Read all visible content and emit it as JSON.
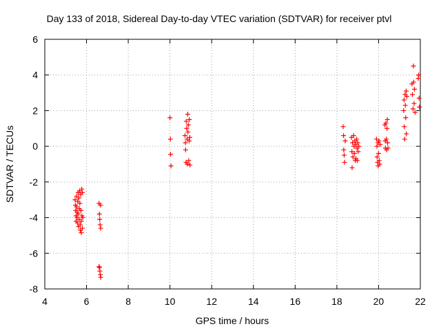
{
  "chart_data": {
    "type": "scatter",
    "title": "Day 133 of 2018, Sidereal Day-to-day VTEC variation (SDTVAR) for receiver ptvl",
    "xlabel": "GPS time / hours",
    "ylabel": "SDTVAR / TECUs",
    "xlim": [
      4,
      22
    ],
    "ylim": [
      -8,
      6
    ],
    "xticks": [
      4,
      6,
      8,
      10,
      12,
      14,
      16,
      18,
      20,
      22
    ],
    "yticks": [
      -8,
      -6,
      -4,
      -2,
      0,
      2,
      4,
      6
    ],
    "grid": true,
    "marker": "+",
    "color": "#ff0000",
    "series": [
      {
        "name": "SDTVAR",
        "points": [
          [
            5.45,
            -3.0
          ],
          [
            5.47,
            -3.3
          ],
          [
            5.48,
            -3.6
          ],
          [
            5.5,
            -3.9
          ],
          [
            5.5,
            -4.2
          ],
          [
            5.52,
            -2.8
          ],
          [
            5.53,
            -3.4
          ],
          [
            5.55,
            -3.7
          ],
          [
            5.55,
            -4.0
          ],
          [
            5.57,
            -4.3
          ],
          [
            5.58,
            -3.1
          ],
          [
            5.6,
            -2.6
          ],
          [
            5.6,
            -3.8
          ],
          [
            5.62,
            -4.5
          ],
          [
            5.63,
            -2.9
          ],
          [
            5.65,
            -3.5
          ],
          [
            5.65,
            -4.1
          ],
          [
            5.67,
            -2.5
          ],
          [
            5.68,
            -3.2
          ],
          [
            5.7,
            -4.4
          ],
          [
            5.7,
            -4.7
          ],
          [
            5.72,
            -2.7
          ],
          [
            5.73,
            -3.6
          ],
          [
            5.75,
            -4.2
          ],
          [
            5.75,
            -4.85
          ],
          [
            5.77,
            -2.4
          ],
          [
            5.78,
            -3.9
          ],
          [
            5.8,
            -4.6
          ],
          [
            5.8,
            -2.6
          ],
          [
            5.82,
            -4.0
          ],
          [
            6.6,
            -3.2
          ],
          [
            6.62,
            -3.8
          ],
          [
            6.63,
            -4.1
          ],
          [
            6.65,
            -4.4
          ],
          [
            6.67,
            -3.3
          ],
          [
            6.68,
            -4.6
          ],
          [
            6.62,
            -6.8
          ],
          [
            6.64,
            -7.0
          ],
          [
            6.66,
            -7.2
          ],
          [
            6.68,
            -7.35
          ],
          [
            6.6,
            -6.75
          ],
          [
            10.0,
            1.6
          ],
          [
            10.02,
            0.4
          ],
          [
            10.03,
            -0.45
          ],
          [
            10.05,
            -1.1
          ],
          [
            10.72,
            0.6
          ],
          [
            10.74,
            0.2
          ],
          [
            10.75,
            -0.2
          ],
          [
            10.77,
            -0.9
          ],
          [
            10.78,
            1.4
          ],
          [
            10.8,
            1.0
          ],
          [
            10.82,
            0.4
          ],
          [
            10.83,
            -1.0
          ],
          [
            10.85,
            1.8
          ],
          [
            10.86,
            0.8
          ],
          [
            10.88,
            1.2
          ],
          [
            10.9,
            -0.8
          ],
          [
            10.92,
            0.3
          ],
          [
            10.93,
            1.5
          ],
          [
            10.95,
            0.5
          ],
          [
            10.96,
            -1.05
          ],
          [
            18.3,
            1.1
          ],
          [
            18.32,
            0.6
          ],
          [
            18.33,
            -0.2
          ],
          [
            18.35,
            -0.5
          ],
          [
            18.37,
            -0.9
          ],
          [
            18.4,
            0.3
          ],
          [
            18.7,
            0.5
          ],
          [
            18.72,
            -0.3
          ],
          [
            18.73,
            -1.2
          ],
          [
            18.75,
            0.2
          ],
          [
            18.77,
            -0.6
          ],
          [
            18.8,
            0.6
          ],
          [
            18.82,
            0.0
          ],
          [
            18.84,
            -0.4
          ],
          [
            18.86,
            0.3
          ],
          [
            18.88,
            -0.8
          ],
          [
            18.9,
            0.1
          ],
          [
            18.92,
            -0.7
          ],
          [
            18.95,
            0.4
          ],
          [
            18.97,
            -0.1
          ],
          [
            18.98,
            -0.8
          ],
          [
            19.0,
            0.2
          ],
          [
            19.02,
            -0.3
          ],
          [
            19.05,
            0.0
          ],
          [
            19.9,
            0.4
          ],
          [
            19.92,
            0.0
          ],
          [
            19.93,
            -0.6
          ],
          [
            19.95,
            -0.9
          ],
          [
            19.97,
            0.2
          ],
          [
            19.98,
            -1.1
          ],
          [
            20.0,
            -0.4
          ],
          [
            20.02,
            0.3
          ],
          [
            20.03,
            -0.8
          ],
          [
            20.05,
            -1.0
          ],
          [
            20.07,
            0.1
          ],
          [
            20.3,
            1.2
          ],
          [
            20.32,
            0.3
          ],
          [
            20.33,
            -0.1
          ],
          [
            20.35,
            1.3
          ],
          [
            20.37,
            0.4
          ],
          [
            20.38,
            -0.2
          ],
          [
            20.4,
            1.0
          ],
          [
            20.42,
            1.5
          ],
          [
            20.43,
            0.2
          ],
          [
            20.45,
            -0.1
          ],
          [
            21.2,
            2.0
          ],
          [
            21.22,
            2.6
          ],
          [
            21.23,
            1.1
          ],
          [
            21.25,
            0.4
          ],
          [
            21.27,
            2.9
          ],
          [
            21.28,
            2.3
          ],
          [
            21.3,
            1.6
          ],
          [
            21.32,
            3.1
          ],
          [
            21.33,
            0.7
          ],
          [
            21.35,
            2.8
          ],
          [
            21.6,
            3.5
          ],
          [
            21.62,
            2.9
          ],
          [
            21.65,
            2.1
          ],
          [
            21.67,
            4.5
          ],
          [
            21.68,
            3.6
          ],
          [
            21.7,
            2.4
          ],
          [
            21.72,
            3.2
          ],
          [
            21.75,
            1.9
          ],
          [
            21.9,
            3.8
          ],
          [
            21.92,
            4.0
          ],
          [
            21.94,
            2.7
          ],
          [
            21.96,
            2.2
          ]
        ]
      }
    ]
  }
}
